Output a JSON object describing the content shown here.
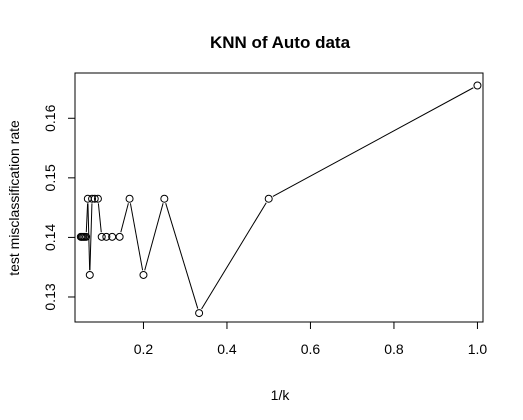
{
  "chart_data": {
    "type": "line",
    "title": "KNN of Auto data",
    "xlabel": "1/k",
    "ylabel": "test misclassification rate",
    "xlim": [
      0.036,
      1.0133
    ],
    "ylim": [
      0.1258,
      0.1676
    ],
    "x_ticks": [
      0.2,
      0.4,
      0.6,
      0.8,
      1.0
    ],
    "x_tick_labels": [
      "0.2",
      "0.4",
      "0.6",
      "0.8",
      "1.0"
    ],
    "y_ticks": [
      0.13,
      0.14,
      0.15,
      0.16
    ],
    "y_tick_labels": [
      "0.13",
      "0.14",
      "0.15",
      "0.16"
    ],
    "grid": false,
    "legend": "none",
    "markers": "open-circle",
    "series": [
      {
        "x": [
          1.0,
          0.5,
          0.3333,
          0.25,
          0.2,
          0.1667,
          0.1429,
          0.125,
          0.1111,
          0.1,
          0.0909,
          0.0833,
          0.0769,
          0.0714,
          0.0667,
          0.0625,
          0.0588,
          0.0556,
          0.0526,
          0.05
        ],
        "y": [
          0.1655,
          0.1465,
          0.1273,
          0.1465,
          0.1337,
          0.1465,
          0.1401,
          0.1401,
          0.1401,
          0.1401,
          0.1465,
          0.1465,
          0.1465,
          0.1337,
          0.1465,
          0.1401,
          0.1401,
          0.1401,
          0.1401,
          0.1401
        ]
      }
    ]
  }
}
